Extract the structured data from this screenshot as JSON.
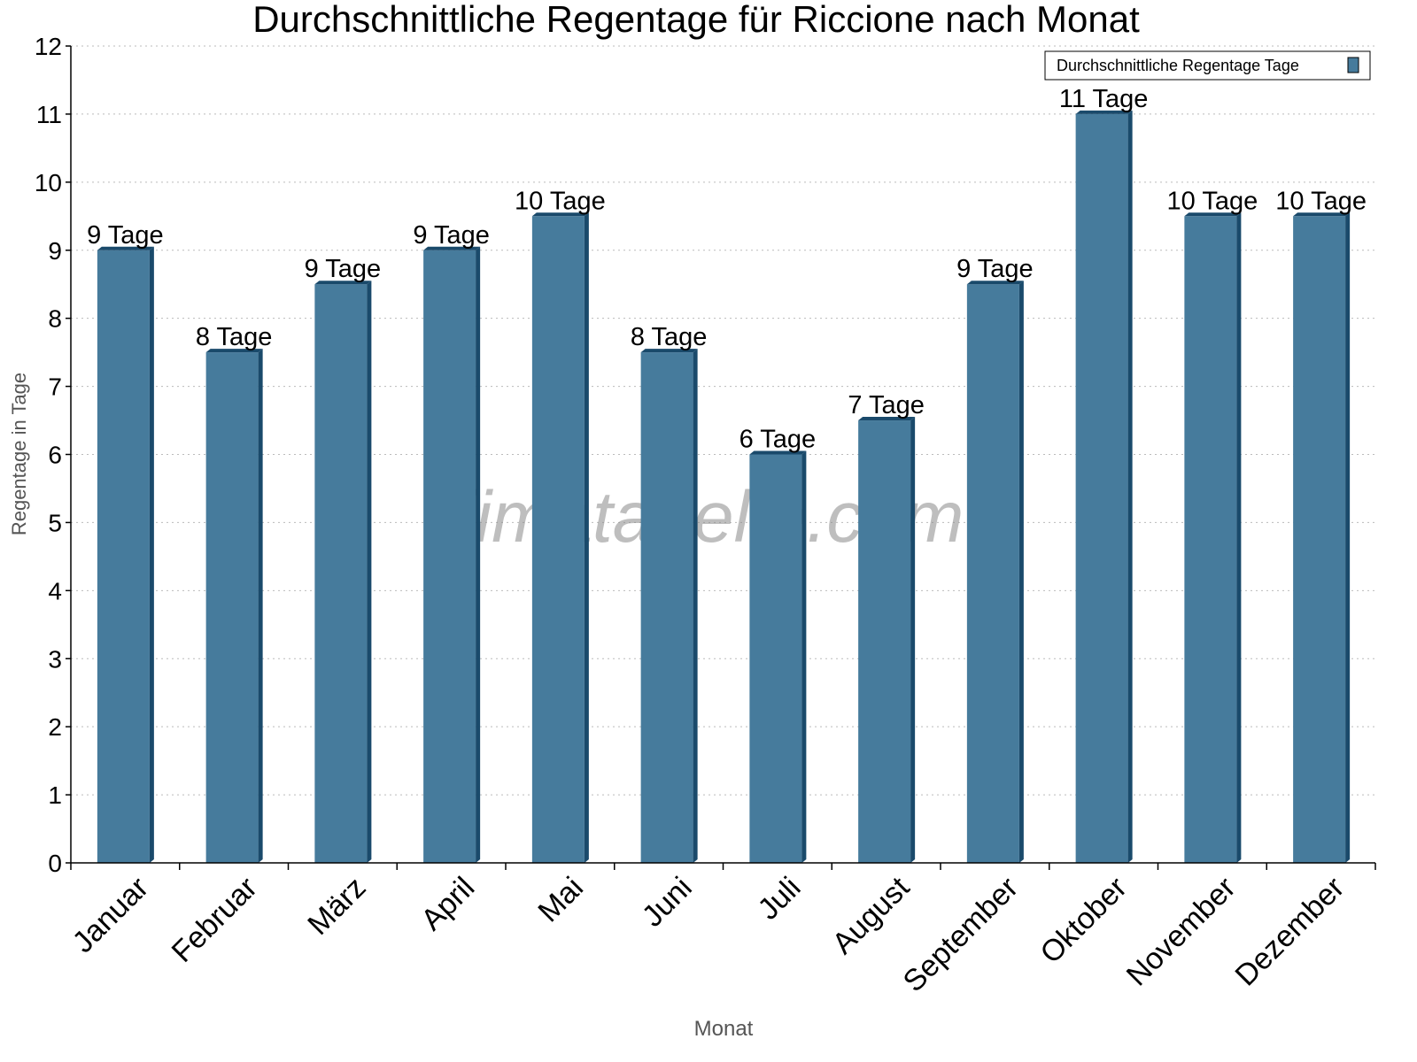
{
  "chart_data": {
    "type": "bar",
    "title": "Durchschnittliche Regentage für Riccione nach Monat",
    "xlabel": "Monat",
    "ylabel": "Regentage in Tage",
    "ylim": [
      0,
      12
    ],
    "yticks": [
      0,
      1,
      2,
      3,
      4,
      5,
      6,
      7,
      8,
      9,
      10,
      11,
      12
    ],
    "grid": true,
    "legend_position": "top-right",
    "watermark": "klimatabelle.com",
    "categories": [
      "Januar",
      "Februar",
      "März",
      "April",
      "Mai",
      "Juni",
      "Juli",
      "August",
      "September",
      "Oktober",
      "November",
      "Dezember"
    ],
    "series": [
      {
        "name": "Durchschnittliche Regentage Tage",
        "values": [
          9,
          7.5,
          8.5,
          9,
          9.5,
          7.5,
          6,
          6.5,
          8.5,
          11,
          9.5,
          9.5
        ],
        "labels": [
          "9 Tage",
          "8 Tage",
          "9 Tage",
          "9 Tage",
          "10 Tage",
          "8 Tage",
          "6 Tage",
          "7 Tage",
          "9 Tage",
          "11 Tage",
          "10 Tage",
          "10 Tage"
        ],
        "color": "#467b9c",
        "side_color": "#1a4a6b"
      }
    ]
  }
}
